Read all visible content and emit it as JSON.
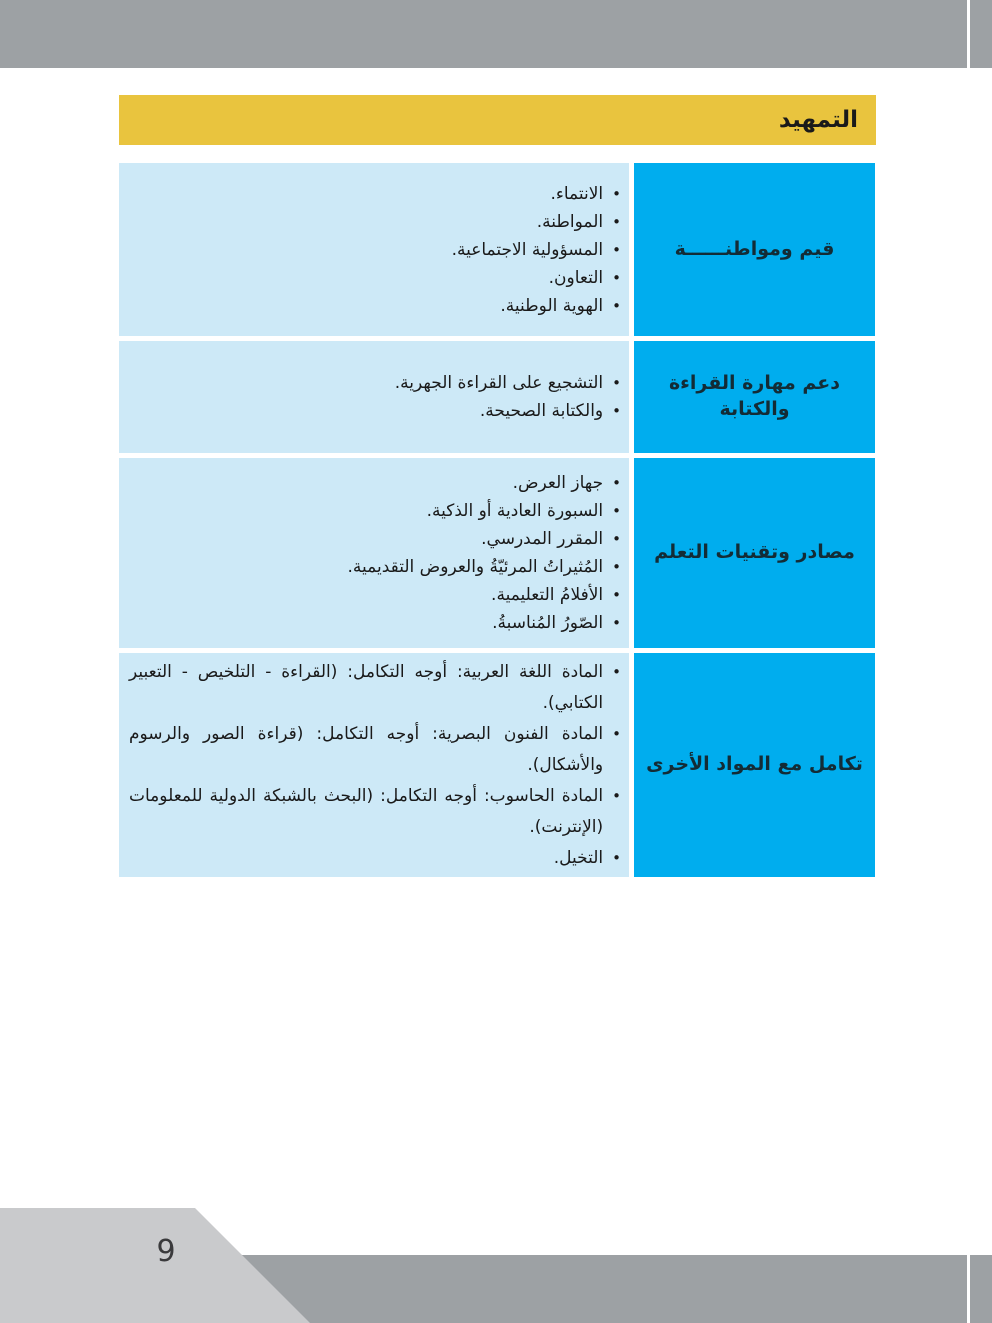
{
  "page": {
    "title": "التمهيد",
    "page_number": "9"
  },
  "colors": {
    "header_band_gray": "#9da1a4",
    "footer_band_gray": "#9da1a4",
    "footer_polygon_gray": "#c9cacc",
    "title_bar_yellow": "#e9c43e",
    "row_header_cyan": "#00adee",
    "row_content_light_blue": "#cde9f7",
    "text_dark": "#1a1a1a"
  },
  "table": {
    "bullet_glyph": "•",
    "rows": [
      {
        "header": "قيم ومواطنــــــة",
        "items": [
          "الانتماء.",
          "المواطنة.",
          "المسؤولية الاجتماعية.",
          "التعاون.",
          "الهوية الوطنية."
        ]
      },
      {
        "header": "دعم مهارة القراءة والكتابة",
        "items": [
          "التشجيع على القراءة الجهرية.",
          "والكتابة الصحيحة."
        ]
      },
      {
        "header": "مصادر وتقنيات التعلم",
        "items": [
          "جهاز العرض.",
          "السبورة العادية أو الذكية.",
          "المقرر المدرسي.",
          "المُثيراتُ المرئيّةُ والعروض التقديمية.",
          "الأفلامُ التعليمية.",
          "الصّورُ المُناسبةُ."
        ]
      },
      {
        "header": "تكامل مع المواد الأخرى",
        "items": [
          "المادة اللغة العربية: أوجه التكامل: (القراءة - التلخيص - التعبير الكتابي).",
          "المادة الفنون البصرية: أوجه التكامل: (قراءة الصور والرسوم والأشكال).",
          "المادة الحاسوب: أوجه التكامل: (البحث بالشبكة الدولية للمعلومات (الإنترنت).",
          "التخيل."
        ]
      }
    ]
  }
}
